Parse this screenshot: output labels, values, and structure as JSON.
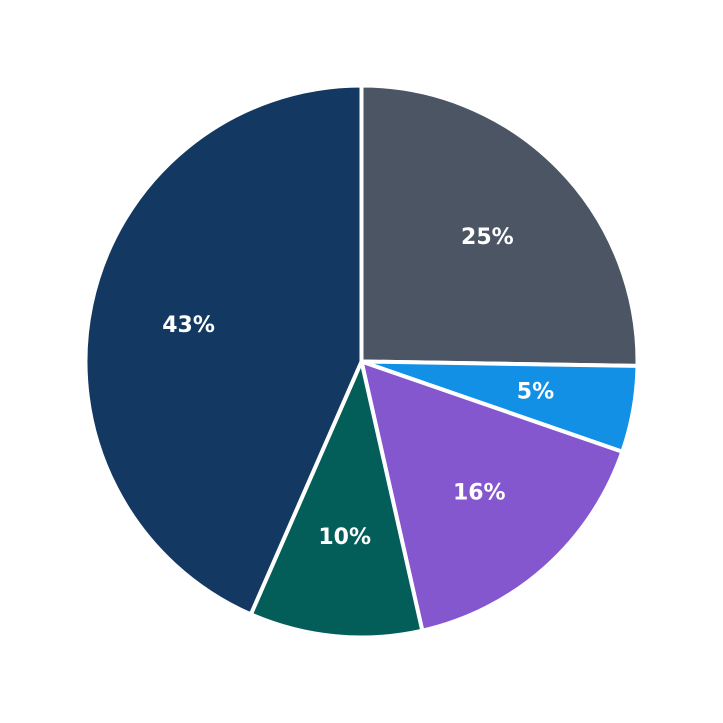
{
  "chart_data": {
    "type": "pie",
    "title": "",
    "legend": "none",
    "start_angle_deg": 90,
    "direction": "clockwise",
    "slices": [
      {
        "label": "25%",
        "value": 25,
        "color": "#4b5563"
      },
      {
        "label": "5%",
        "value": 5,
        "color": "#1190e6"
      },
      {
        "label": "16%",
        "value": 16,
        "color": "#8557cf"
      },
      {
        "label": "10%",
        "value": 10,
        "color": "#035e5a"
      },
      {
        "label": "43%",
        "value": 43,
        "color": "#133862"
      }
    ]
  }
}
